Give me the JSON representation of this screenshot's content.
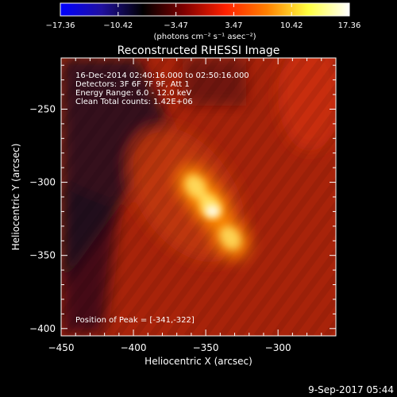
{
  "chart_data": {
    "type": "heatmap",
    "title": "Reconstructed RHESSI Image",
    "xlabel": "Heliocentric X (arcsec)",
    "ylabel": "Heliocentric Y (arcsec)",
    "xlim": [
      -450,
      -260
    ],
    "ylim": [
      -405,
      -215
    ],
    "x_ticks": [
      -450,
      -400,
      -350,
      -300
    ],
    "x_tick_labels": [
      "−450",
      "−400",
      "−350",
      "−300"
    ],
    "y_ticks": [
      -250,
      -300,
      -350,
      -400
    ],
    "y_tick_labels": [
      "−250",
      "−300",
      "−350",
      "−400"
    ],
    "colorbar": {
      "min": -17.36,
      "max": 17.36,
      "tick_labels": [
        "−17.36",
        "−10.42",
        "−3.47",
        "3.47",
        "10.42",
        "17.36"
      ],
      "unit_label": "(photons cm⁻² s⁻¹ asec⁻²)"
    },
    "annotations": [
      "16-Dec-2014 02:40:16.000 to 02:50:16.000",
      "Detectors: 3F 6F 7F 9F, Att 1",
      "Energy Range: 6.0 - 12.0 keV",
      "Clean    Total counts: 1.42E+06"
    ],
    "peak_text": "Position of Peak = [-341,-322]",
    "peak": {
      "x": -341,
      "y": -322
    },
    "sources": [
      {
        "x": -357,
        "y": -303,
        "amplitude": 1.0
      },
      {
        "x": -347,
        "y": -316,
        "amplitude": 1.15
      },
      {
        "x": -333,
        "y": -338,
        "amplitude": 0.95
      }
    ],
    "colormap": [
      "#0000ff",
      "#2010a0",
      "#000000",
      "#800000",
      "#ff2000",
      "#ff8000",
      "#ffff40",
      "#ffffff"
    ]
  },
  "footer": {
    "date": "9-Sep-2017 05:44"
  }
}
